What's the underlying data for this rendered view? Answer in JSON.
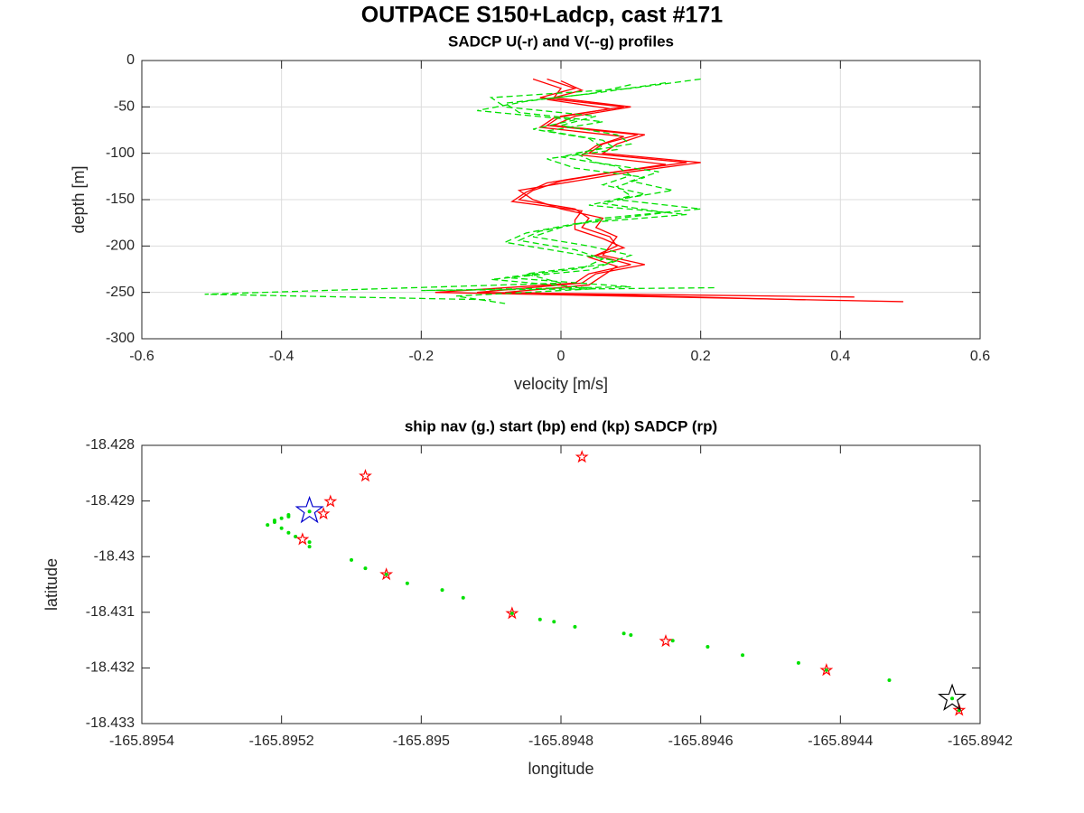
{
  "title": "OUTPACE S150+Ladcp, cast #171",
  "chart_data": [
    {
      "type": "line",
      "title": "SADCP U(-r) and V(--g) profiles",
      "x_label": "velocity [m/s]",
      "y_label": "depth [m]",
      "xlim": [
        -0.6,
        0.6
      ],
      "xticks": [
        -0.6,
        -0.4,
        -0.2,
        0,
        0.2,
        0.4,
        0.6
      ],
      "ylim": [
        -300,
        0
      ],
      "yticks": [
        -300,
        -250,
        -200,
        -150,
        -100,
        -50,
        0
      ],
      "grid": true,
      "series": [
        {
          "color": "#ff0000",
          "linestyle": "solid",
          "x": [
            -0.02,
            0.02,
            -0.03,
            0.09,
            0.0,
            -0.02,
            0.11,
            0.06,
            0.04,
            0.18,
            0.08,
            0.0,
            -0.04,
            -0.06,
            0.02,
            0.04,
            0.03,
            0.07,
            0.08,
            0.05,
            0.1,
            0.04,
            0.02,
            -0.18,
            0.49
          ],
          "values": [
            -20,
            -30,
            -40,
            -50,
            -60,
            -70,
            -80,
            -90,
            -100,
            -110,
            -120,
            -130,
            -140,
            -150,
            -160,
            -170,
            -180,
            -190,
            -200,
            -210,
            -220,
            -230,
            -240,
            -250,
            -260
          ]
        },
        {
          "color": "#ff0000",
          "linestyle": "solid",
          "x": [
            -0.04,
            0.0,
            -0.01,
            0.1,
            0.02,
            -0.01,
            0.12,
            0.08,
            0.06,
            0.2,
            0.1,
            0.02,
            -0.06,
            -0.04,
            0.0,
            0.06,
            0.05,
            0.08,
            0.07,
            0.06,
            0.12,
            0.05,
            0.03,
            -0.12,
            0.42
          ],
          "values": [
            -20,
            -30,
            -40,
            -50,
            -60,
            -70,
            -80,
            -90,
            -100,
            -110,
            -120,
            -130,
            -140,
            -150,
            -160,
            -170,
            -180,
            -190,
            -200,
            -210,
            -220,
            -230,
            -240,
            -250,
            -255
          ]
        },
        {
          "color": "#ff0000",
          "linestyle": "solid",
          "x": [
            0.0,
            0.03,
            -0.02,
            0.07,
            -0.01,
            -0.03,
            0.09,
            0.05,
            0.03,
            0.15,
            0.06,
            -0.02,
            -0.05,
            -0.07,
            0.03,
            0.02,
            0.02,
            0.06,
            0.09,
            0.04,
            0.08,
            0.06,
            0.04,
            -0.08,
            0.35
          ],
          "values": [
            -22,
            -32,
            -42,
            -52,
            -62,
            -72,
            -82,
            -92,
            -102,
            -112,
            -122,
            -132,
            -142,
            -152,
            -162,
            -172,
            -182,
            -192,
            -202,
            -212,
            -222,
            -232,
            -242,
            -250,
            -258
          ]
        },
        {
          "color": "#00e000",
          "linestyle": "dashed",
          "x": [
            0.2,
            0.1,
            -0.1,
            -0.08,
            0.05,
            0.0,
            0.08,
            0.1,
            0.02,
            0.05,
            0.14,
            0.1,
            0.16,
            0.08,
            0.2,
            0.06,
            0.0,
            -0.04,
            0.04,
            0.1,
            0.06,
            -0.05,
            0.0,
            -0.51,
            -0.1
          ],
          "values": [
            -20,
            -30,
            -40,
            -50,
            -60,
            -70,
            -80,
            -90,
            -100,
            -110,
            -120,
            -130,
            -140,
            -150,
            -160,
            -170,
            -180,
            -190,
            -200,
            -210,
            -220,
            -230,
            -240,
            -252,
            -258
          ]
        },
        {
          "color": "#00e000",
          "linestyle": "dashed",
          "x": [
            0.15,
            0.06,
            -0.05,
            -0.12,
            0.02,
            -0.04,
            0.04,
            0.06,
            0.0,
            0.08,
            0.1,
            0.06,
            0.12,
            0.06,
            0.15,
            0.04,
            -0.03,
            -0.06,
            0.02,
            0.06,
            0.03,
            -0.08,
            0.1,
            -0.2,
            0.22
          ],
          "values": [
            -24,
            -34,
            -44,
            -54,
            -64,
            -74,
            -84,
            -94,
            -104,
            -114,
            -124,
            -134,
            -144,
            -154,
            -164,
            -174,
            -184,
            -194,
            -204,
            -214,
            -224,
            -234,
            -244,
            -248,
            -245
          ]
        },
        {
          "color": "#00e000",
          "linestyle": "dashed",
          "x": [
            0.1,
            0.04,
            -0.08,
            -0.06,
            0.06,
            -0.02,
            0.06,
            0.08,
            -0.02,
            0.02,
            0.12,
            0.08,
            0.1,
            0.04,
            0.18,
            0.02,
            -0.05,
            -0.08,
            0.0,
            0.08,
            0.04,
            -0.1,
            0.05,
            -0.15,
            -0.08
          ],
          "values": [
            -26,
            -36,
            -46,
            -56,
            -66,
            -76,
            -86,
            -96,
            -106,
            -116,
            -126,
            -136,
            -146,
            -156,
            -166,
            -176,
            -186,
            -196,
            -206,
            -216,
            -226,
            -236,
            -246,
            -254,
            -262
          ]
        }
      ]
    },
    {
      "type": "scatter",
      "title": "ship nav (g.) start (bp) end (kp) SADCP (rp)",
      "x_label": "longitude",
      "y_label": "latitude",
      "xlim": [
        -165.8954,
        -165.8942
      ],
      "xticks": [
        -165.8954,
        -165.8952,
        -165.895,
        -165.8948,
        -165.8946,
        -165.8944,
        -165.8942
      ],
      "ylim": [
        -18.433,
        -18.428
      ],
      "yticks": [
        -18.433,
        -18.432,
        -18.431,
        -18.43,
        -18.429,
        -18.428
      ],
      "grid": false,
      "series": [
        {
          "color": "#00e000",
          "marker": "point",
          "x": [
            -165.89522,
            -165.89521,
            -165.89521,
            -165.8952,
            -165.89519,
            -165.89519,
            -165.8952,
            -165.89519,
            -165.89518,
            -165.89516,
            -165.89516,
            -165.89516,
            -165.8951,
            -165.89508,
            -165.89505,
            -165.89502,
            -165.89497,
            -165.89494,
            -165.89487,
            -165.89483,
            -165.89481,
            -165.89478,
            -165.89471,
            -165.8947,
            -165.89464,
            -165.89459,
            -165.89454,
            -165.89446,
            -165.89442,
            -165.89433,
            -165.89424,
            -165.89423
          ],
          "values": [
            -18.42943,
            -18.42938,
            -18.42935,
            -18.42931,
            -18.42928,
            -18.42925,
            -18.42949,
            -18.42957,
            -18.42964,
            -18.42974,
            -18.42982,
            -18.42919,
            -18.43006,
            -18.43021,
            -18.43032,
            -18.43048,
            -18.4306,
            -18.43074,
            -18.43102,
            -18.43113,
            -18.43117,
            -18.43126,
            -18.43138,
            -18.43141,
            -18.43151,
            -18.43162,
            -18.43177,
            -18.43191,
            -18.43204,
            -18.43222,
            -18.43255,
            -18.43276
          ]
        },
        {
          "color": "#ff0000",
          "marker": "pentagram",
          "x": [
            -165.89477,
            -165.89508,
            -165.89513,
            -165.89514,
            -165.89517,
            -165.89505,
            -165.89487,
            -165.89465,
            -165.89442,
            -165.89423
          ],
          "values": [
            -18.42821,
            -18.42855,
            -18.42901,
            -18.42923,
            -18.42969,
            -18.43032,
            -18.43102,
            -18.43152,
            -18.43204,
            -18.43276
          ]
        },
        {
          "color": "#0000cc",
          "marker": "pentagram-large",
          "x": [
            -165.89516
          ],
          "values": [
            -18.42918
          ]
        },
        {
          "color": "#000000",
          "marker": "pentagram-large",
          "x": [
            -165.89424
          ],
          "values": [
            -18.43255
          ]
        }
      ]
    }
  ]
}
